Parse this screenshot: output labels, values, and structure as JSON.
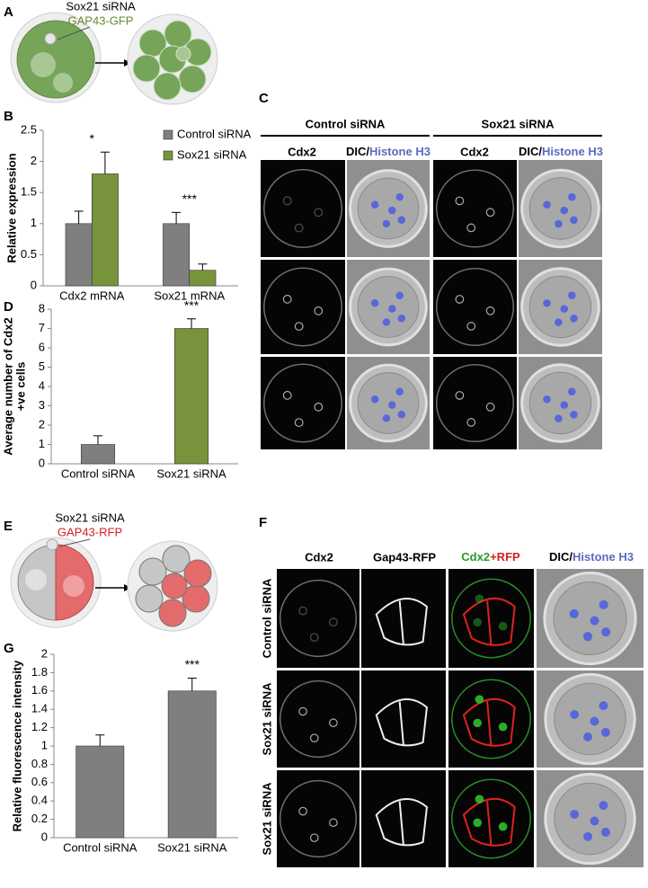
{
  "panel_labels": [
    "A",
    "B",
    "C",
    "D",
    "E",
    "F",
    "G"
  ],
  "schematic_a": {
    "line1": "Sox21 siRNA",
    "line2": "GAP43-GFP"
  },
  "schematic_e": {
    "line1": "Sox21 siRNA",
    "line2": "GAP43-RFP"
  },
  "panel_c": {
    "groups": [
      "Control siRNA",
      "Sox21 siRNA"
    ],
    "cdx2": "Cdx2",
    "dic": "DIC/",
    "histone": "Histone H3"
  },
  "panel_f": {
    "cdx2": "Cdx2",
    "gap43": "Gap43-RFP",
    "merge_a": "Cdx2",
    "merge_b": "+RFP",
    "dic": "DIC/",
    "histone": "Histone H3",
    "rows": [
      "Control siRNA",
      "Sox21 siRNA",
      "Sox21 siRNA"
    ]
  },
  "chart_data": [
    {
      "type": "bar",
      "ylabel": "Relative expression",
      "categories": [
        "Cdx2 mRNA",
        "Sox21 mRNA"
      ],
      "series": [
        {
          "name": "Control siRNA",
          "color": "#7f7f7f",
          "values": [
            1,
            1
          ],
          "errors": [
            0.2,
            0.18
          ]
        },
        {
          "name": "Sox21 siRNA",
          "color": "#77933c",
          "values": [
            1.8,
            0.25
          ],
          "errors": [
            0.35,
            0.1
          ]
        }
      ],
      "annotations": [
        "*",
        "***"
      ],
      "ylim": [
        0,
        2.5
      ],
      "yticks": [
        0,
        0.5,
        1,
        1.5,
        2,
        2.5
      ]
    },
    {
      "type": "bar",
      "ylabel": [
        "Average number of Cdx2",
        "+ve cells"
      ],
      "categories": [
        "Control siRNA",
        "Sox21 siRNA"
      ],
      "values": [
        1,
        7
      ],
      "errors": [
        0.45,
        0.5
      ],
      "colors": [
        "#7f7f7f",
        "#77933c"
      ],
      "annotations": [
        null,
        "***"
      ],
      "ylim": [
        0,
        8
      ],
      "yticks": [
        0,
        1,
        2,
        3,
        4,
        5,
        6,
        7,
        8
      ]
    },
    {
      "type": "bar",
      "ylabel": "Relative fluorescence intensity",
      "categories": [
        "Control siRNA",
        "Sox21 siRNA"
      ],
      "values": [
        1,
        1.6
      ],
      "errors": [
        0.12,
        0.14
      ],
      "color": "#7f7f7f",
      "annotations": [
        null,
        "***"
      ],
      "ylim": [
        0,
        2
      ],
      "yticks": [
        0,
        0.2,
        0.4,
        0.6,
        0.8,
        1,
        1.2,
        1.4,
        1.6,
        1.8,
        2
      ]
    }
  ]
}
